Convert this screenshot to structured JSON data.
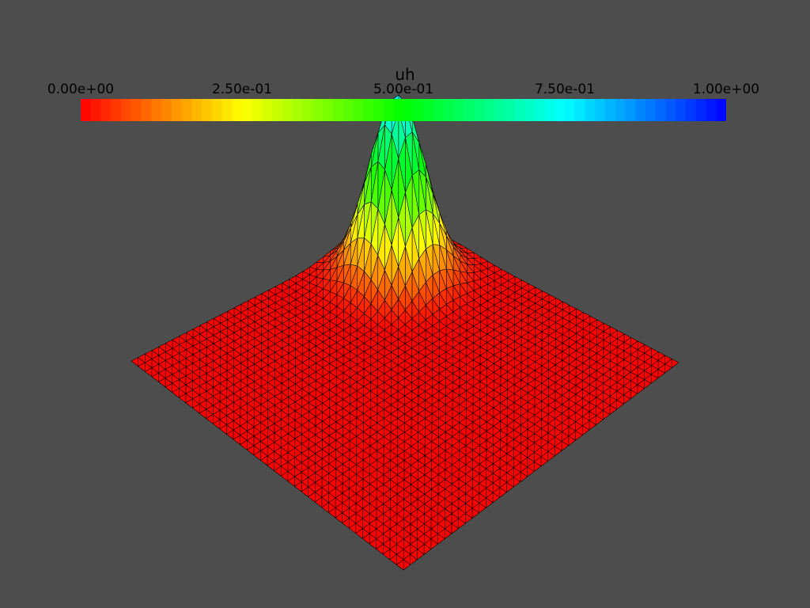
{
  "colorbar": {
    "title": "uh",
    "tick_labels": [
      "0.00e+00",
      "2.50e-01",
      "5.00e-01",
      "7.50e-01",
      "1.00e+00"
    ],
    "range": [
      0,
      1
    ],
    "band_count": 64,
    "colormap": "red-yellow-green-cyan-blue"
  },
  "surface": {
    "field": "uh",
    "mesh": "triangular",
    "grid_divisions": 40,
    "peak_value": 0.78,
    "mesh_line_color": "#000000",
    "background_color": "#4d4d4d"
  }
}
